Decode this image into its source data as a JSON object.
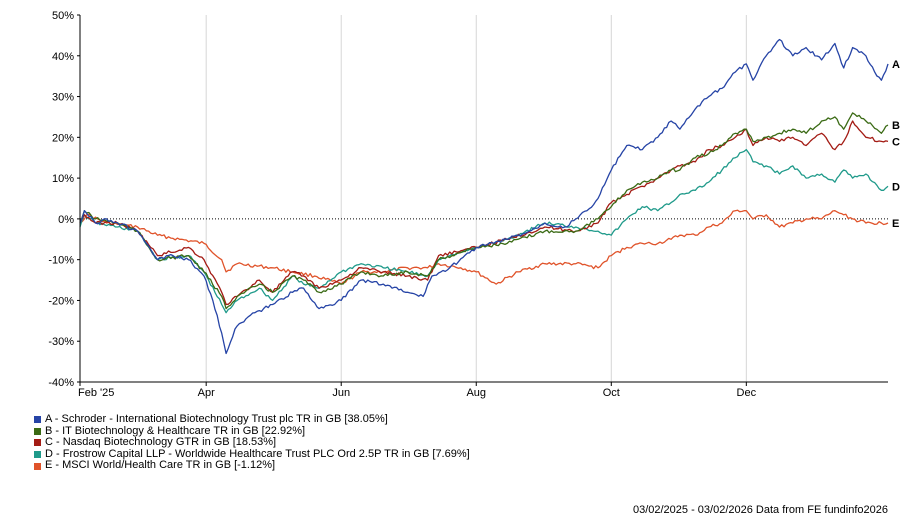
{
  "chart_data": {
    "type": "line",
    "ylim": [
      -40,
      50
    ],
    "y_ticks": [
      "50%",
      "40%",
      "30%",
      "20%",
      "10%",
      "0%",
      "-10%",
      "-20%",
      "-30%",
      "-40%"
    ],
    "x_ticks": [
      {
        "label": "Feb '25",
        "date": "2025-02-03"
      },
      {
        "label": "Apr",
        "date": "2025-04-01"
      },
      {
        "label": "Jun",
        "date": "2025-06-01"
      },
      {
        "label": "Aug",
        "date": "2025-08-01"
      },
      {
        "label": "Oct",
        "date": "2025-10-01"
      },
      {
        "label": "Dec",
        "date": "2025-12-01"
      }
    ],
    "x_range": [
      "2025-02-03",
      "2026-02-03"
    ],
    "series": [
      {
        "name": "A - Schroder - International Biotechnology Trust plc TR in GB [38.05%]",
        "end_label": "A",
        "color": "#2644a6",
        "points": [
          [
            "2025-02-03",
            -1
          ],
          [
            "2025-02-05",
            2
          ],
          [
            "2025-02-10",
            -1
          ],
          [
            "2025-02-15",
            0
          ],
          [
            "2025-02-20",
            -1
          ],
          [
            "2025-03-01",
            -3
          ],
          [
            "2025-03-10",
            -10
          ],
          [
            "2025-03-17",
            -9
          ],
          [
            "2025-03-24",
            -10
          ],
          [
            "2025-03-31",
            -14
          ],
          [
            "2025-04-04",
            -20
          ],
          [
            "2025-04-08",
            -28
          ],
          [
            "2025-04-10",
            -33
          ],
          [
            "2025-04-14",
            -27
          ],
          [
            "2025-04-20",
            -24
          ],
          [
            "2025-05-01",
            -21
          ],
          [
            "2025-05-10",
            -18
          ],
          [
            "2025-05-15",
            -17
          ],
          [
            "2025-05-22",
            -22
          ],
          [
            "2025-06-01",
            -20
          ],
          [
            "2025-06-10",
            -15
          ],
          [
            "2025-06-20",
            -16
          ],
          [
            "2025-07-01",
            -18
          ],
          [
            "2025-07-08",
            -19
          ],
          [
            "2025-07-12",
            -14
          ],
          [
            "2025-07-20",
            -12
          ],
          [
            "2025-08-01",
            -7
          ],
          [
            "2025-08-15",
            -5
          ],
          [
            "2025-08-25",
            -3
          ],
          [
            "2025-09-01",
            -1
          ],
          [
            "2025-09-10",
            -2
          ],
          [
            "2025-09-15",
            0
          ],
          [
            "2025-09-20",
            2
          ],
          [
            "2025-09-25",
            5
          ],
          [
            "2025-10-01",
            12
          ],
          [
            "2025-10-08",
            18
          ],
          [
            "2025-10-15",
            17
          ],
          [
            "2025-10-22",
            20
          ],
          [
            "2025-10-28",
            24
          ],
          [
            "2025-11-01",
            22
          ],
          [
            "2025-11-08",
            27
          ],
          [
            "2025-11-14",
            30
          ],
          [
            "2025-11-20",
            32
          ],
          [
            "2025-11-26",
            36
          ],
          [
            "2025-12-01",
            38
          ],
          [
            "2025-12-04",
            34
          ],
          [
            "2025-12-10",
            40
          ],
          [
            "2025-12-16",
            44
          ],
          [
            "2025-12-22",
            40
          ],
          [
            "2025-12-28",
            42
          ],
          [
            "2026-01-04",
            39
          ],
          [
            "2026-01-10",
            43
          ],
          [
            "2026-01-14",
            37
          ],
          [
            "2026-01-18",
            42
          ],
          [
            "2026-01-24",
            40
          ],
          [
            "2026-01-28",
            36
          ],
          [
            "2026-01-31",
            34
          ],
          [
            "2026-02-03",
            38
          ]
        ]
      },
      {
        "name": "B - IT Biotechnology & Healthcare TR in GB [22.92%]",
        "end_label": "B",
        "color": "#3a6a14",
        "points": [
          [
            "2025-02-03",
            -1
          ],
          [
            "2025-02-05",
            2
          ],
          [
            "2025-02-10",
            0
          ],
          [
            "2025-02-20",
            -1
          ],
          [
            "2025-03-01",
            -3
          ],
          [
            "2025-03-10",
            -10
          ],
          [
            "2025-03-24",
            -9
          ],
          [
            "2025-03-31",
            -13
          ],
          [
            "2025-04-08",
            -19
          ],
          [
            "2025-04-10",
            -22
          ],
          [
            "2025-04-15",
            -19
          ],
          [
            "2025-04-25",
            -16
          ],
          [
            "2025-05-01",
            -18
          ],
          [
            "2025-05-10",
            -14
          ],
          [
            "2025-05-15",
            -15
          ],
          [
            "2025-05-22",
            -18
          ],
          [
            "2025-06-01",
            -16
          ],
          [
            "2025-06-10",
            -13
          ],
          [
            "2025-06-20",
            -14
          ],
          [
            "2025-07-01",
            -13
          ],
          [
            "2025-07-10",
            -14
          ],
          [
            "2025-07-15",
            -10
          ],
          [
            "2025-08-01",
            -7
          ],
          [
            "2025-08-15",
            -6
          ],
          [
            "2025-09-01",
            -3
          ],
          [
            "2025-09-15",
            -3
          ],
          [
            "2025-09-25",
            0
          ],
          [
            "2025-10-01",
            3
          ],
          [
            "2025-10-08",
            7
          ],
          [
            "2025-10-15",
            9
          ],
          [
            "2025-10-22",
            10
          ],
          [
            "2025-10-28",
            12
          ],
          [
            "2025-11-01",
            12
          ],
          [
            "2025-11-08",
            15
          ],
          [
            "2025-11-14",
            16
          ],
          [
            "2025-11-20",
            18
          ],
          [
            "2025-11-26",
            21
          ],
          [
            "2025-12-01",
            22
          ],
          [
            "2025-12-04",
            19
          ],
          [
            "2025-12-10",
            20
          ],
          [
            "2025-12-16",
            21
          ],
          [
            "2025-12-22",
            22
          ],
          [
            "2025-12-28",
            21
          ],
          [
            "2026-01-04",
            24
          ],
          [
            "2026-01-10",
            25
          ],
          [
            "2026-01-14",
            22
          ],
          [
            "2026-01-18",
            26
          ],
          [
            "2026-01-24",
            24
          ],
          [
            "2026-01-31",
            21
          ],
          [
            "2026-02-03",
            23
          ]
        ]
      },
      {
        "name": "C - Nasdaq Biotechnology GTR in GB [18.53%]",
        "end_label": "C",
        "color": "#a31b14",
        "points": [
          [
            "2025-02-03",
            -1
          ],
          [
            "2025-02-05",
            1
          ],
          [
            "2025-02-10",
            -1
          ],
          [
            "2025-02-20",
            -1
          ],
          [
            "2025-03-01",
            -3
          ],
          [
            "2025-03-10",
            -9
          ],
          [
            "2025-03-24",
            -7
          ],
          [
            "2025-03-31",
            -10
          ],
          [
            "2025-04-08",
            -18
          ],
          [
            "2025-04-10",
            -21
          ],
          [
            "2025-04-15",
            -19
          ],
          [
            "2025-04-25",
            -15
          ],
          [
            "2025-05-01",
            -18
          ],
          [
            "2025-05-10",
            -13
          ],
          [
            "2025-05-15",
            -14
          ],
          [
            "2025-05-22",
            -17
          ],
          [
            "2025-06-01",
            -15
          ],
          [
            "2025-06-10",
            -12
          ],
          [
            "2025-06-20",
            -13
          ],
          [
            "2025-07-01",
            -14
          ],
          [
            "2025-07-10",
            -15
          ],
          [
            "2025-07-15",
            -9
          ],
          [
            "2025-08-01",
            -7
          ],
          [
            "2025-08-15",
            -5
          ],
          [
            "2025-09-01",
            -2
          ],
          [
            "2025-09-15",
            -3
          ],
          [
            "2025-09-25",
            -1
          ],
          [
            "2025-10-01",
            4
          ],
          [
            "2025-10-08",
            6
          ],
          [
            "2025-10-15",
            8
          ],
          [
            "2025-10-22",
            10
          ],
          [
            "2025-10-28",
            12
          ],
          [
            "2025-11-01",
            13
          ],
          [
            "2025-11-08",
            14
          ],
          [
            "2025-11-14",
            17
          ],
          [
            "2025-11-20",
            18
          ],
          [
            "2025-11-26",
            20
          ],
          [
            "2025-12-01",
            22
          ],
          [
            "2025-12-04",
            18
          ],
          [
            "2025-12-10",
            20
          ],
          [
            "2025-12-16",
            19
          ],
          [
            "2025-12-22",
            20
          ],
          [
            "2025-12-28",
            18
          ],
          [
            "2026-01-04",
            21
          ],
          [
            "2026-01-10",
            17
          ],
          [
            "2026-01-14",
            19
          ],
          [
            "2026-01-18",
            24
          ],
          [
            "2026-01-24",
            20
          ],
          [
            "2026-01-31",
            19
          ],
          [
            "2026-02-03",
            19
          ]
        ]
      },
      {
        "name": "D - Frostrow Capital LLP - Worldwide Healthcare Trust PLC Ord 2.5P TR in GB [7.69%]",
        "end_label": "D",
        "color": "#1f9a8a",
        "points": [
          [
            "2025-02-03",
            -2
          ],
          [
            "2025-02-05",
            1
          ],
          [
            "2025-02-10",
            -1
          ],
          [
            "2025-02-20",
            -2
          ],
          [
            "2025-03-01",
            -3
          ],
          [
            "2025-03-10",
            -10
          ],
          [
            "2025-03-24",
            -9
          ],
          [
            "2025-03-31",
            -13
          ],
          [
            "2025-04-08",
            -21
          ],
          [
            "2025-04-10",
            -23
          ],
          [
            "2025-04-15",
            -20
          ],
          [
            "2025-04-25",
            -17
          ],
          [
            "2025-05-01",
            -20
          ],
          [
            "2025-05-10",
            -14
          ],
          [
            "2025-05-15",
            -16
          ],
          [
            "2025-05-22",
            -17
          ],
          [
            "2025-06-01",
            -13
          ],
          [
            "2025-06-10",
            -11
          ],
          [
            "2025-06-20",
            -12
          ],
          [
            "2025-07-01",
            -13
          ],
          [
            "2025-07-10",
            -14
          ],
          [
            "2025-07-15",
            -10
          ],
          [
            "2025-08-01",
            -7
          ],
          [
            "2025-08-15",
            -5
          ],
          [
            "2025-09-01",
            -1
          ],
          [
            "2025-09-15",
            -2
          ],
          [
            "2025-09-25",
            -3
          ],
          [
            "2025-10-01",
            -4
          ],
          [
            "2025-10-08",
            0
          ],
          [
            "2025-10-15",
            3
          ],
          [
            "2025-10-22",
            2
          ],
          [
            "2025-10-28",
            4
          ],
          [
            "2025-11-01",
            6
          ],
          [
            "2025-11-08",
            7
          ],
          [
            "2025-11-14",
            9
          ],
          [
            "2025-11-20",
            12
          ],
          [
            "2025-11-26",
            15
          ],
          [
            "2025-12-01",
            17
          ],
          [
            "2025-12-04",
            14
          ],
          [
            "2025-12-10",
            13
          ],
          [
            "2025-12-16",
            11
          ],
          [
            "2025-12-22",
            13
          ],
          [
            "2025-12-28",
            10
          ],
          [
            "2026-01-04",
            11
          ],
          [
            "2026-01-10",
            9
          ],
          [
            "2026-01-14",
            12
          ],
          [
            "2026-01-18",
            10
          ],
          [
            "2026-01-24",
            11
          ],
          [
            "2026-01-31",
            7
          ],
          [
            "2026-02-03",
            8
          ]
        ]
      },
      {
        "name": "E - MSCI World/Health Care TR in GB [-1.12%]",
        "end_label": "E",
        "color": "#e0532a",
        "points": [
          [
            "2025-02-03",
            -1
          ],
          [
            "2025-02-06",
            1
          ],
          [
            "2025-02-15",
            -1
          ],
          [
            "2025-03-01",
            -2
          ],
          [
            "2025-03-10",
            -4
          ],
          [
            "2025-03-20",
            -5
          ],
          [
            "2025-03-31",
            -6
          ],
          [
            "2025-04-08",
            -10
          ],
          [
            "2025-04-10",
            -13
          ],
          [
            "2025-04-15",
            -11
          ],
          [
            "2025-05-01",
            -12
          ],
          [
            "2025-05-10",
            -13
          ],
          [
            "2025-05-20",
            -14
          ],
          [
            "2025-06-01",
            -16
          ],
          [
            "2025-06-10",
            -13
          ],
          [
            "2025-06-20",
            -13
          ],
          [
            "2025-07-01",
            -12
          ],
          [
            "2025-07-10",
            -12
          ],
          [
            "2025-07-15",
            -11
          ],
          [
            "2025-07-25",
            -12
          ],
          [
            "2025-08-01",
            -13
          ],
          [
            "2025-08-10",
            -16
          ],
          [
            "2025-08-20",
            -13
          ],
          [
            "2025-09-01",
            -11
          ],
          [
            "2025-09-15",
            -11
          ],
          [
            "2025-09-25",
            -12
          ],
          [
            "2025-10-01",
            -9
          ],
          [
            "2025-10-08",
            -7
          ],
          [
            "2025-10-15",
            -6
          ],
          [
            "2025-10-22",
            -6
          ],
          [
            "2025-10-28",
            -5
          ],
          [
            "2025-11-01",
            -4
          ],
          [
            "2025-11-08",
            -4
          ],
          [
            "2025-11-14",
            -2
          ],
          [
            "2025-11-20",
            -1
          ],
          [
            "2025-11-26",
            2
          ],
          [
            "2025-12-01",
            2
          ],
          [
            "2025-12-04",
            0
          ],
          [
            "2025-12-10",
            1
          ],
          [
            "2025-12-16",
            -2
          ],
          [
            "2025-12-22",
            -1
          ],
          [
            "2025-12-28",
            0
          ],
          [
            "2026-01-04",
            0
          ],
          [
            "2026-01-10",
            2
          ],
          [
            "2026-01-14",
            1
          ],
          [
            "2026-01-18",
            0
          ],
          [
            "2026-01-24",
            -1
          ],
          [
            "2026-01-31",
            -1
          ],
          [
            "2026-02-03",
            -1
          ]
        ]
      }
    ]
  },
  "footer": {
    "date_range": "03/02/2025 - 03/02/2026",
    "source": "Data from FE fundinfo2026"
  }
}
